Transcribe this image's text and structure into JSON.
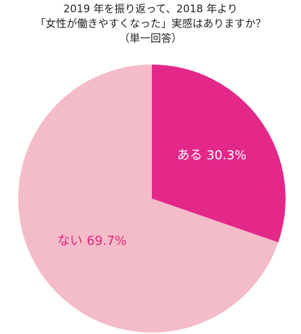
{
  "chart_data": {
    "type": "pie",
    "title": [
      "2019 年を振り返って、2018 年より",
      "「女性が働きやすくなった」実感はありますか？"
    ],
    "subtitle": "（単一回答）",
    "categories": [
      "ある",
      "ない"
    ],
    "values": [
      30.3,
      69.7
    ],
    "value_labels": [
      "30.3%",
      "69.7%"
    ],
    "colors": [
      "#e3288a",
      "#f4bcc9"
    ]
  }
}
